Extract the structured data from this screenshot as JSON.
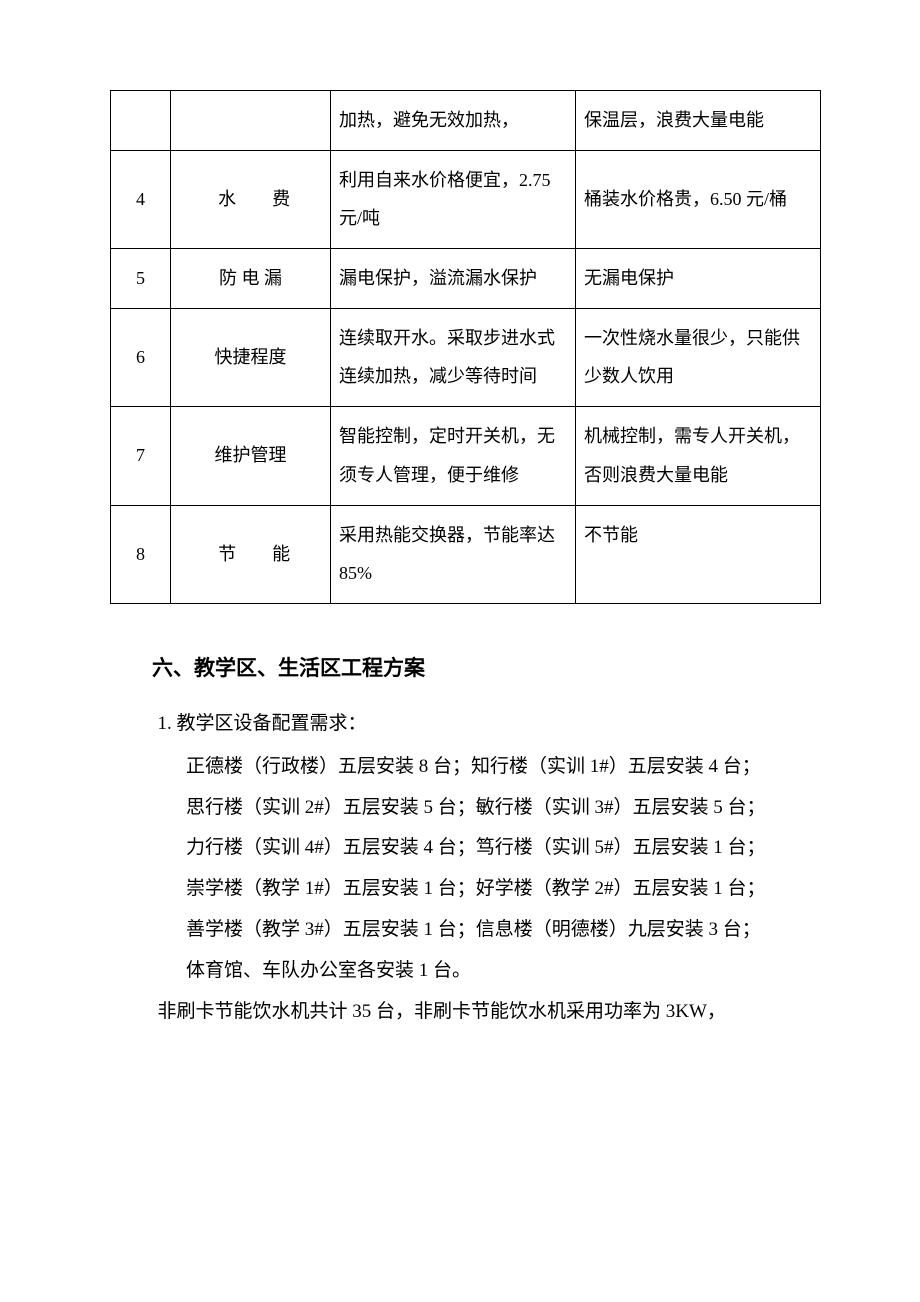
{
  "table": {
    "rows": [
      {
        "num": "",
        "item": "",
        "new": "加热，避免无效加热，",
        "old": "保温层，浪费大量电能"
      },
      {
        "num": "4",
        "item_spaced": true,
        "item_chars": [
          "水",
          "费"
        ],
        "new": "利用自来水价格便宜，2.75 元/吨",
        "old": "桶装水价格贵，6.50 元/桶"
      },
      {
        "num": "5",
        "item_halfspaced": true,
        "item": "防 电 漏",
        "new": "漏电保护，溢流漏水保护",
        "old": "无漏电保护"
      },
      {
        "num": "6",
        "item": "快捷程度",
        "new": "连续取开水。采取步进水式连续加热，减少等待时间",
        "old": "一次性烧水量很少，只能供少数人饮用"
      },
      {
        "num": "7",
        "item": "维护管理",
        "new": "智能控制，定时开关机，无须专人管理，便于维修",
        "old": "机械控制，需专人开关机，否则浪费大量电能"
      },
      {
        "num": "8",
        "item_spaced": true,
        "item_chars": [
          "节",
          "能"
        ],
        "new": "采用热能交换器，节能率达 85%",
        "old": "不节能"
      }
    ]
  },
  "section": {
    "heading": "六、教学区、生活区工程方案",
    "sub1": "1. 教学区设备配置需求：",
    "lines": [
      "正德楼（行政楼）五层安装 8 台；知行楼（实训 1#）五层安装 4 台；",
      "思行楼（实训 2#）五层安装 5 台；敏行楼（实训 3#）五层安装 5 台；",
      "力行楼（实训 4#）五层安装 4 台；笃行楼（实训 5#）五层安装 1 台；",
      "崇学楼（教学 1#）五层安装 1 台；好学楼（教学 2#）五层安装 1 台；",
      "善学楼（教学 3#）五层安装 1 台；信息楼（明德楼）九层安装 3 台；",
      "体育馆、车队办公室各安装 1 台。"
    ],
    "summary": "非刷卡节能饮水机共计 35 台，非刷卡节能饮水机采用功率为 3KW，"
  }
}
